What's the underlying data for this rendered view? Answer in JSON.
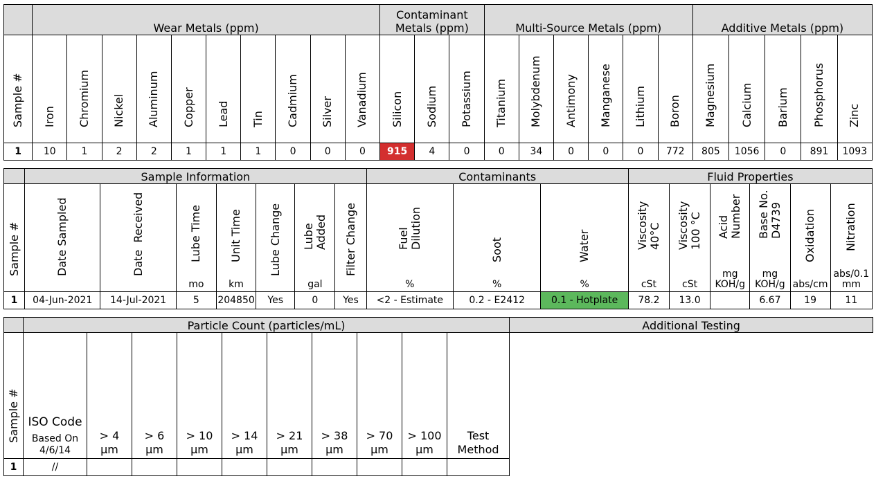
{
  "metals": {
    "sample_header": "Sample #",
    "groups": [
      {
        "label": "Wear Metals (ppm)"
      },
      {
        "label": "Contaminant\nMetals (ppm)"
      },
      {
        "label": "Multi-Source Metals (ppm)"
      },
      {
        "label": "Additive Metals (ppm)"
      }
    ],
    "columns": [
      "Iron",
      "Chromium",
      "Nickel",
      "Aluminum",
      "Copper",
      "Lead",
      "Tin",
      "Cadmium",
      "Silver",
      "Vanadium",
      "Silicon",
      "Sodium",
      "Potassium",
      "Titanium",
      "Molybdenum",
      "Antimony",
      "Manganese",
      "Lithium",
      "Boron",
      "Magnesium",
      "Calcium",
      "Barium",
      "Phosphorus",
      "Zinc"
    ],
    "row": {
      "sample": "1",
      "values": [
        "10",
        "1",
        "2",
        "2",
        "1",
        "1",
        "1",
        "0",
        "0",
        "0",
        "915",
        "4",
        "0",
        "0",
        "34",
        "0",
        "0",
        "0",
        "772",
        "805",
        "1056",
        "0",
        "891",
        "1093"
      ]
    },
    "alert_color": "#d32f2f"
  },
  "sample_info": {
    "sample_header": "Sample #",
    "groups": [
      {
        "label": "Sample Information"
      },
      {
        "label": "Contaminants"
      },
      {
        "label": "Fluid Properties"
      }
    ],
    "columns": [
      {
        "label": "Date Sampled",
        "unit": ""
      },
      {
        "label": "Date  Received",
        "unit": ""
      },
      {
        "label": "Lube Time",
        "unit": "mo"
      },
      {
        "label": "Unit Time",
        "unit": "km"
      },
      {
        "label": "Lube Change",
        "unit": ""
      },
      {
        "label": "Lube\nAdded",
        "unit": "gal"
      },
      {
        "label": "Filter Change",
        "unit": ""
      },
      {
        "label": "Fuel\nDilution",
        "unit": "%"
      },
      {
        "label": "Soot",
        "unit": "%"
      },
      {
        "label": "Water",
        "unit": "%"
      },
      {
        "label": "Viscosity\n40°C",
        "unit": "cSt"
      },
      {
        "label": "Viscosity\n100 °C",
        "unit": "cSt"
      },
      {
        "label": "Acid\nNumber",
        "unit": "mg\nKOH/g"
      },
      {
        "label": "Base No.\nD4739",
        "unit": "mg\nKOH/g"
      },
      {
        "label": "Oxidation",
        "unit": "abs/cm"
      },
      {
        "label": "Nitration",
        "unit": "abs/0.1\nmm"
      }
    ],
    "row": {
      "sample": "1",
      "values": [
        "04-Jun-2021",
        "14-Jul-2021",
        "5",
        "204850",
        "Yes",
        "0",
        "Yes",
        "<2 - Estimate",
        "0.2 - E2412",
        "0.1 - Hotplate",
        "78.2",
        "13.0",
        "",
        "6.67",
        "19",
        "11"
      ]
    },
    "ok_color": "#5cb85c"
  },
  "particle": {
    "sample_header": "Sample #",
    "group_label": "Particle Count (particles/mL)",
    "additional_label": "Additional Testing",
    "iso_label": "ISO Code",
    "iso_sub": "Based On\n4/6/14",
    "columns": [
      "> 4\nµm",
      "> 6\nµm",
      "> 10\nµm",
      "> 14\nµm",
      "> 21\nµm",
      "> 38\nµm",
      "> 70\nµm",
      "> 100\nµm",
      "Test\nMethod"
    ],
    "row": {
      "sample": "1",
      "iso": "//",
      "values": [
        "",
        "",
        "",
        "",
        "",
        "",
        "",
        "",
        ""
      ]
    }
  }
}
